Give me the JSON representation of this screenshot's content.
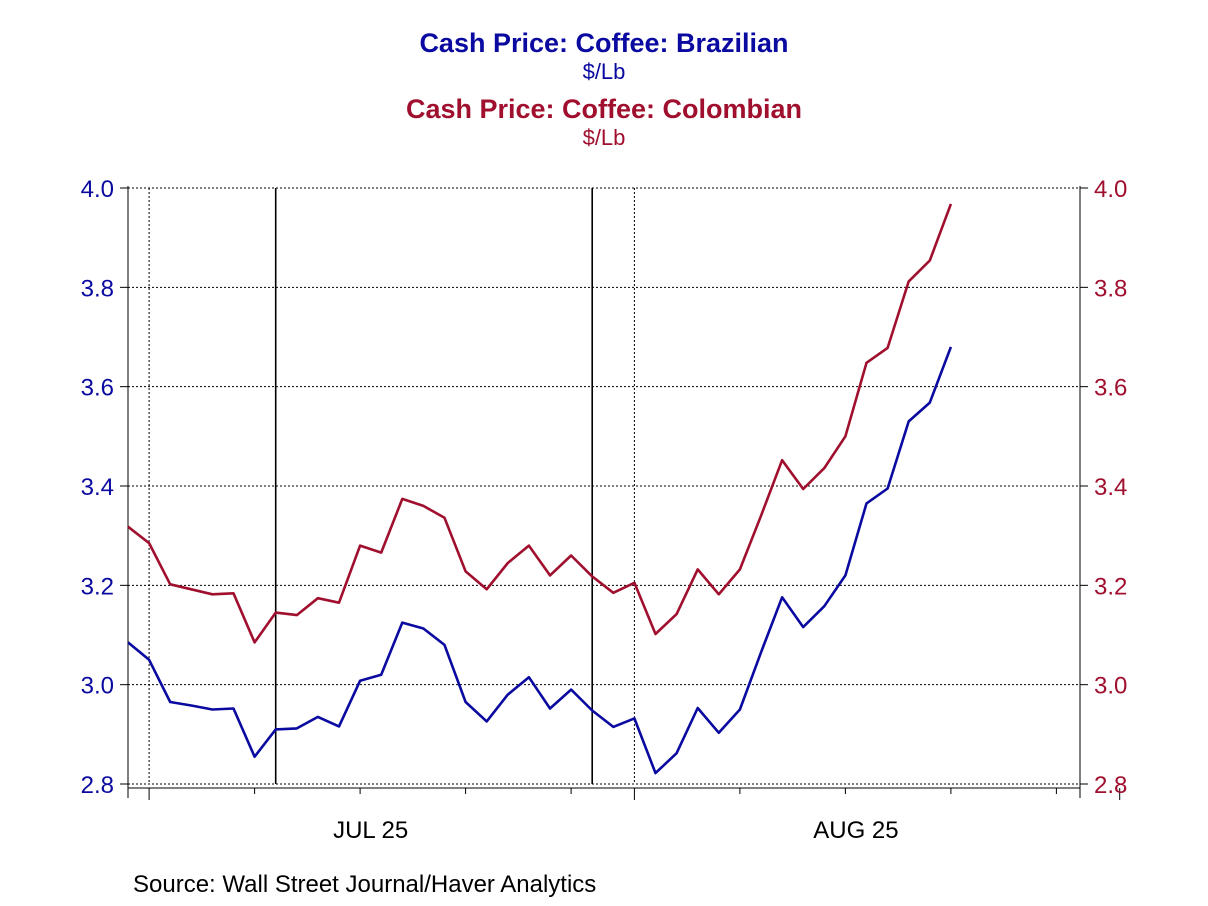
{
  "chart_data": {
    "type": "line",
    "titles": [
      {
        "title": "Cash Price: Coffee: Brazilian",
        "unit": "$/Lb",
        "color": "#0a0aa0"
      },
      {
        "title": "Cash Price: Coffee: Colombian",
        "unit": "$/Lb",
        "color": "#a0102e"
      }
    ],
    "x_axis": {
      "labels": [
        {
          "text": "JUL 25",
          "index": 11.5
        },
        {
          "text": "AUG 25",
          "index": 34.5
        }
      ],
      "month_boundaries": [
        1,
        24,
        47
      ],
      "week_marks": [
        6,
        11,
        16,
        21,
        29,
        34,
        39,
        44
      ],
      "vertical_lines_solid": [
        7,
        22
      ],
      "vertical_lines_dotted": [
        1,
        24
      ],
      "range": [
        0,
        45
      ]
    },
    "left_axis": {
      "ticks": [
        "4.0",
        "3.8",
        "3.6",
        "3.4",
        "3.2",
        "3.0",
        "2.8"
      ],
      "range": [
        2.8,
        4.0
      ],
      "color": "#0a0aa0"
    },
    "right_axis": {
      "ticks": [
        "4.0",
        "3.8",
        "3.6",
        "3.4",
        "3.2",
        "3.0",
        "2.8"
      ],
      "range": [
        2.8,
        4.0
      ],
      "color": "#a0102e"
    },
    "series": [
      {
        "name": "Cash Price: Coffee: Brazilian",
        "color": "#0a0aa0",
        "values": [
          3.085,
          3.05,
          2.965,
          2.958,
          2.95,
          2.952,
          2.855,
          2.91,
          2.912,
          2.935,
          2.916,
          3.008,
          3.02,
          3.125,
          3.113,
          3.08,
          2.965,
          2.926,
          2.98,
          3.015,
          2.952,
          2.99,
          2.948,
          2.915,
          2.932,
          2.822,
          2.862,
          2.953,
          2.903,
          2.95,
          3.065,
          3.176,
          3.116,
          3.158,
          3.22,
          3.365,
          3.395,
          3.53,
          3.568,
          3.68
        ]
      },
      {
        "name": "Cash Price: Coffee: Colombian",
        "color": "#a0102e",
        "values": [
          3.318,
          3.285,
          3.202,
          3.192,
          3.182,
          3.184,
          3.085,
          3.145,
          3.14,
          3.174,
          3.165,
          3.28,
          3.266,
          3.374,
          3.36,
          3.336,
          3.228,
          3.192,
          3.245,
          3.28,
          3.22,
          3.26,
          3.218,
          3.185,
          3.205,
          3.102,
          3.142,
          3.232,
          3.182,
          3.232,
          3.34,
          3.452,
          3.394,
          3.436,
          3.5,
          3.648,
          3.678,
          3.812,
          3.854,
          3.968
        ]
      }
    ]
  },
  "footer": {
    "source": "Source:  Wall Street Journal/Haver Analytics"
  }
}
